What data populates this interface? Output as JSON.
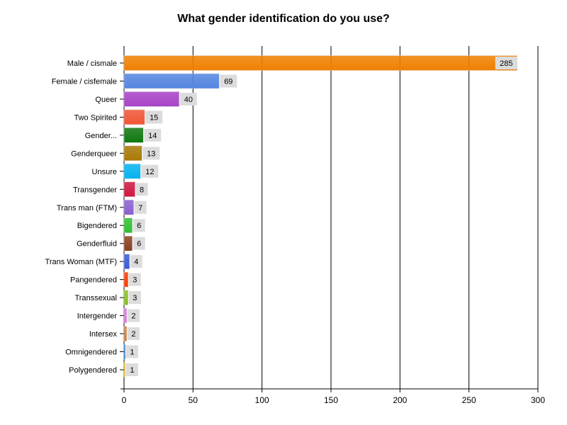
{
  "chart_data": {
    "type": "bar",
    "orientation": "horizontal",
    "title": "What gender identification do you use?",
    "xlim": [
      0,
      300
    ],
    "xticks": [
      0,
      50,
      100,
      150,
      200,
      250,
      300
    ],
    "grid": true,
    "categories": [
      "Male / cismale",
      "Female / cisfemale",
      "Queer",
      "Two Spirited",
      "Gender...",
      "Genderqueer",
      "Unsure",
      "Transgender",
      "Trans man (FTM)",
      "Bigendered",
      "Genderfluid",
      "Trans Woman (MTF)",
      "Pangendered",
      "Transsexual",
      "Intergender",
      "Intersex",
      "Omnigendered",
      "Polygendered"
    ],
    "values": [
      285,
      69,
      40,
      15,
      14,
      13,
      12,
      8,
      7,
      6,
      6,
      4,
      3,
      3,
      2,
      2,
      1,
      1
    ],
    "colors": [
      "#f08000",
      "#5585e0",
      "#a843c8",
      "#f05535",
      "#0f780f",
      "#a87a05",
      "#05b3f0",
      "#d01840",
      "#8a60d0",
      "#30c030",
      "#8a4020",
      "#3a5ad8",
      "#ff3a00",
      "#88c020",
      "#e070e0",
      "#d07a35",
      "#1a70d0",
      "#f0c010"
    ]
  }
}
